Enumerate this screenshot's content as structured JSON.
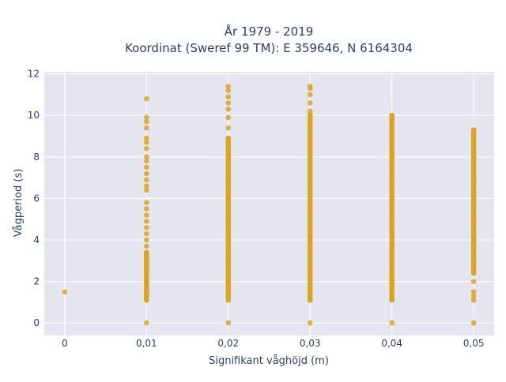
{
  "chart_data": {
    "type": "scatter",
    "title_line1": "År 1979 - 2019",
    "title_line2": "Koordinat (Sweref 99 TM): E 359646, N 6164304",
    "xlabel": "Signifikant våghöjd (m)",
    "ylabel": "Vågperiod (s)",
    "x_ticks": [
      {
        "value": 0,
        "label": "0"
      },
      {
        "value": 0.01,
        "label": "0,01"
      },
      {
        "value": 0.02,
        "label": "0,02"
      },
      {
        "value": 0.03,
        "label": "0,03"
      },
      {
        "value": 0.04,
        "label": "0,04"
      },
      {
        "value": 0.05,
        "label": "0,05"
      }
    ],
    "y_ticks": [
      {
        "value": 0,
        "label": "0"
      },
      {
        "value": 2,
        "label": "2"
      },
      {
        "value": 4,
        "label": "4"
      },
      {
        "value": 6,
        "label": "6"
      },
      {
        "value": 8,
        "label": "8"
      },
      {
        "value": 10,
        "label": "10"
      },
      {
        "value": 12,
        "label": "12"
      }
    ],
    "xlim": [
      -0.0025,
      0.0525
    ],
    "ylim": [
      -0.6,
      12.1
    ],
    "grid": true,
    "marker_color": "#DAA520",
    "plot_bg": "#E5E5F0",
    "series": [
      {
        "points": [
          [
            0,
            1.5
          ],
          [
            0.01,
            0
          ],
          [
            0.01,
            1.1
          ],
          [
            0.01,
            1.5
          ],
          [
            0.01,
            2.0
          ],
          [
            0.01,
            2.5
          ],
          [
            0.01,
            3.0
          ],
          [
            0.01,
            3.4
          ],
          [
            0.01,
            3.7
          ],
          [
            0.01,
            4.0
          ],
          [
            0.01,
            4.3
          ],
          [
            0.01,
            4.6
          ],
          [
            0.01,
            4.9
          ],
          [
            0.01,
            5.2
          ],
          [
            0.01,
            5.5
          ],
          [
            0.01,
            5.8
          ],
          [
            0.01,
            6.4
          ],
          [
            0.01,
            6.6
          ],
          [
            0.01,
            6.9
          ],
          [
            0.01,
            7.2
          ],
          [
            0.01,
            7.5
          ],
          [
            0.01,
            7.8
          ],
          [
            0.01,
            8.0
          ],
          [
            0.01,
            8.4
          ],
          [
            0.01,
            8.7
          ],
          [
            0.01,
            8.9
          ],
          [
            0.01,
            9.4
          ],
          [
            0.01,
            9.7
          ],
          [
            0.01,
            9.9
          ],
          [
            0.01,
            10.8
          ],
          [
            0.02,
            0
          ],
          [
            0.02,
            1.1
          ],
          [
            0.02,
            2.0
          ],
          [
            0.02,
            3.0
          ],
          [
            0.02,
            4.0
          ],
          [
            0.02,
            5.0
          ],
          [
            0.02,
            6.0
          ],
          [
            0.02,
            7.0
          ],
          [
            0.02,
            8.0
          ],
          [
            0.02,
            8.9
          ],
          [
            0.02,
            9.4
          ],
          [
            0.02,
            9.9
          ],
          [
            0.02,
            10.3
          ],
          [
            0.02,
            10.6
          ],
          [
            0.02,
            10.9
          ],
          [
            0.02,
            11.2
          ],
          [
            0.02,
            11.4
          ],
          [
            0.03,
            0
          ],
          [
            0.03,
            1.1
          ],
          [
            0.03,
            2.0
          ],
          [
            0.03,
            3.0
          ],
          [
            0.03,
            4.0
          ],
          [
            0.03,
            5.0
          ],
          [
            0.03,
            6.0
          ],
          [
            0.03,
            7.0
          ],
          [
            0.03,
            8.0
          ],
          [
            0.03,
            9.0
          ],
          [
            0.03,
            10.0
          ],
          [
            0.03,
            10.2
          ],
          [
            0.03,
            10.6
          ],
          [
            0.03,
            11.0
          ],
          [
            0.03,
            11.3
          ],
          [
            0.03,
            11.4
          ],
          [
            0.04,
            0
          ],
          [
            0.04,
            1.1
          ],
          [
            0.04,
            2.0
          ],
          [
            0.04,
            3.0
          ],
          [
            0.04,
            4.0
          ],
          [
            0.04,
            5.0
          ],
          [
            0.04,
            6.0
          ],
          [
            0.04,
            7.0
          ],
          [
            0.04,
            8.0
          ],
          [
            0.04,
            9.0
          ],
          [
            0.04,
            10.0
          ],
          [
            0.05,
            0
          ],
          [
            0.05,
            1.1
          ],
          [
            0.05,
            1.3
          ],
          [
            0.05,
            1.5
          ],
          [
            0.05,
            2.0
          ],
          [
            0.05,
            2.4
          ],
          [
            0.05,
            3.0
          ],
          [
            0.05,
            4.0
          ],
          [
            0.05,
            5.0
          ],
          [
            0.05,
            6.0
          ],
          [
            0.05,
            7.0
          ],
          [
            0.05,
            8.0
          ],
          [
            0.05,
            9.0
          ],
          [
            0.05,
            9.3
          ]
        ],
        "dense_ranges": [
          {
            "x": 0.01,
            "from": 1.1,
            "to": 3.4
          },
          {
            "x": 0.02,
            "from": 1.1,
            "to": 8.9
          },
          {
            "x": 0.03,
            "from": 1.1,
            "to": 10.0
          },
          {
            "x": 0.04,
            "from": 1.1,
            "to": 10.0
          },
          {
            "x": 0.05,
            "from": 2.4,
            "to": 9.3
          }
        ]
      }
    ]
  }
}
